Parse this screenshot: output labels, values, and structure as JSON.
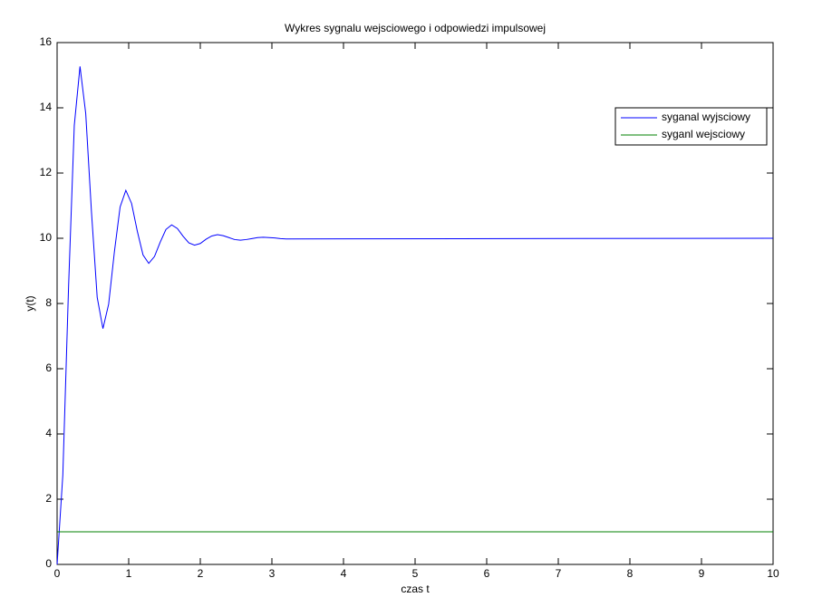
{
  "chart_data": {
    "type": "line",
    "title": "Wykres sygnalu wejsciowego i odpowiedzi impulsowej",
    "xlabel": "czas t",
    "ylabel": "y(t)",
    "xlim": [
      0,
      10
    ],
    "ylim": [
      0,
      16
    ],
    "xticks": [
      0,
      1,
      2,
      3,
      4,
      5,
      6,
      7,
      8,
      9,
      10
    ],
    "yticks": [
      0,
      2,
      4,
      6,
      8,
      10,
      12,
      14,
      16
    ],
    "grid": false,
    "legend": "upper right",
    "series": [
      {
        "name": "syganal wyjsciowy",
        "color": "#0000ff",
        "x": [
          0,
          0.08,
          0.16,
          0.24,
          0.32,
          0.4,
          0.48,
          0.56,
          0.64,
          0.72,
          0.8,
          0.88,
          0.96,
          1.04,
          1.12,
          1.2,
          1.28,
          1.36,
          1.44,
          1.52,
          1.6,
          1.68,
          1.76,
          1.84,
          1.92,
          2,
          2.08,
          2.16,
          2.24,
          2.32,
          2.4,
          2.48,
          2.56,
          2.64,
          2.72,
          2.8,
          2.88,
          2.96,
          3.04,
          3.12,
          3.2,
          10
        ],
        "values": [
          0,
          2.74,
          8.5,
          13.46,
          15.27,
          13.82,
          10.81,
          8.19,
          7.23,
          7.98,
          9.58,
          10.96,
          11.47,
          11.07,
          10.22,
          9.49,
          9.23,
          9.44,
          9.88,
          10.27,
          10.41,
          10.3,
          10.06,
          9.86,
          9.79,
          9.84,
          9.97,
          10.07,
          10.11,
          10.08,
          10.02,
          9.96,
          9.94,
          9.96,
          9.99,
          10.02,
          10.03,
          10.02,
          10.01,
          9.99,
          9.98,
          10
        ]
      },
      {
        "name": "syganl wejsciowy",
        "color": "#008000",
        "x": [
          0,
          10
        ],
        "values": [
          1,
          1
        ]
      }
    ]
  }
}
